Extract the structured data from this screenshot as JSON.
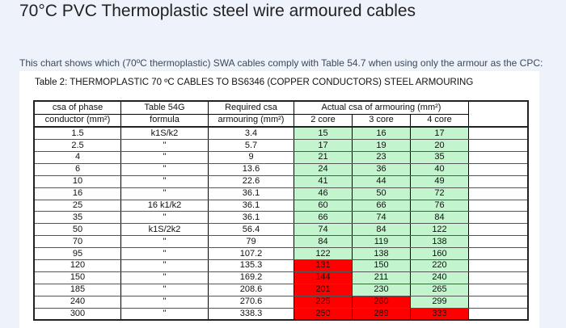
{
  "title": "70°C PVC Thermoplastic steel wire armoured cables",
  "intro": "This chart shows which (70ºC thermoplastic) SWA cables comply with Table 54.7 when using only the armour as the  CPC:",
  "caption": "Table 2: THERMOPLASTIC 70 ºC CABLES TO BS6346 (COPPER CONDUCTORS) STEEL ARMOURING",
  "colors": {
    "pass": "#c2f5cd",
    "fail": "#fe0000"
  },
  "headers": {
    "phase": [
      "csa of phase",
      "conductor (mm²)"
    ],
    "formula": [
      "Table 54G",
      "formula"
    ],
    "required": [
      "Required csa",
      "armouring (mm²)"
    ],
    "actual": "Actual csa of armouring (mm²)",
    "cores": [
      "2 core",
      "3 core",
      "4 core"
    ]
  },
  "rows": [
    {
      "phase": "1.5",
      "formula": "k1S/k2",
      "required": "3.4",
      "cores": [
        "15",
        "16",
        "17"
      ],
      "status": [
        "pass",
        "pass",
        "pass"
      ]
    },
    {
      "phase": "2.5",
      "formula": "\"",
      "required": "5.7",
      "cores": [
        "17",
        "19",
        "20"
      ],
      "status": [
        "pass",
        "pass",
        "pass"
      ]
    },
    {
      "phase": "4",
      "formula": "\"",
      "required": "9",
      "cores": [
        "21",
        "23",
        "35"
      ],
      "status": [
        "pass",
        "pass",
        "pass"
      ]
    },
    {
      "phase": "6",
      "formula": "\"",
      "required": "13.6",
      "cores": [
        "24",
        "36",
        "40"
      ],
      "status": [
        "pass",
        "pass",
        "pass"
      ]
    },
    {
      "phase": "10",
      "formula": "\"",
      "required": "22.6",
      "cores": [
        "41",
        "44",
        "49"
      ],
      "status": [
        "pass",
        "pass",
        "pass"
      ]
    },
    {
      "phase": "16",
      "formula": "\"",
      "required": "36.1",
      "cores": [
        "46",
        "50",
        "72"
      ],
      "status": [
        "pass",
        "pass",
        "pass"
      ]
    },
    {
      "phase": "25",
      "formula": "16 k1/k2",
      "required": "36.1",
      "cores": [
        "60",
        "66",
        "76"
      ],
      "status": [
        "pass",
        "pass",
        "pass"
      ]
    },
    {
      "phase": "35",
      "formula": "\"",
      "required": "36.1",
      "cores": [
        "66",
        "74",
        "84"
      ],
      "status": [
        "pass",
        "pass",
        "pass"
      ]
    },
    {
      "phase": "50",
      "formula": "k1S/2k2",
      "required": "56.4",
      "cores": [
        "74",
        "84",
        "122"
      ],
      "status": [
        "pass",
        "pass",
        "pass"
      ]
    },
    {
      "phase": "70",
      "formula": "\"",
      "required": "79",
      "cores": [
        "84",
        "119",
        "138"
      ],
      "status": [
        "pass",
        "pass",
        "pass"
      ]
    },
    {
      "phase": "95",
      "formula": "\"",
      "required": "107.2",
      "cores": [
        "122",
        "138",
        "160"
      ],
      "status": [
        "pass",
        "pass",
        "pass"
      ]
    },
    {
      "phase": "120",
      "formula": "\"",
      "required": "135.3",
      "cores": [
        "131",
        "150",
        "220"
      ],
      "status": [
        "fail",
        "pass",
        "pass"
      ]
    },
    {
      "phase": "150",
      "formula": "\"",
      "required": "169.2",
      "cores": [
        "144",
        "211",
        "240"
      ],
      "status": [
        "fail",
        "pass",
        "pass"
      ]
    },
    {
      "phase": "185",
      "formula": "\"",
      "required": "208.6",
      "cores": [
        "201",
        "230",
        "265"
      ],
      "status": [
        "fail",
        "pass",
        "pass"
      ]
    },
    {
      "phase": "240",
      "formula": "\"",
      "required": "270.6",
      "cores": [
        "225",
        "260",
        "299"
      ],
      "status": [
        "fail",
        "fail",
        "pass"
      ]
    },
    {
      "phase": "300",
      "formula": "\"",
      "required": "338.3",
      "cores": [
        "250",
        "289",
        "333"
      ],
      "status": [
        "fail",
        "fail",
        "fail"
      ]
    }
  ]
}
